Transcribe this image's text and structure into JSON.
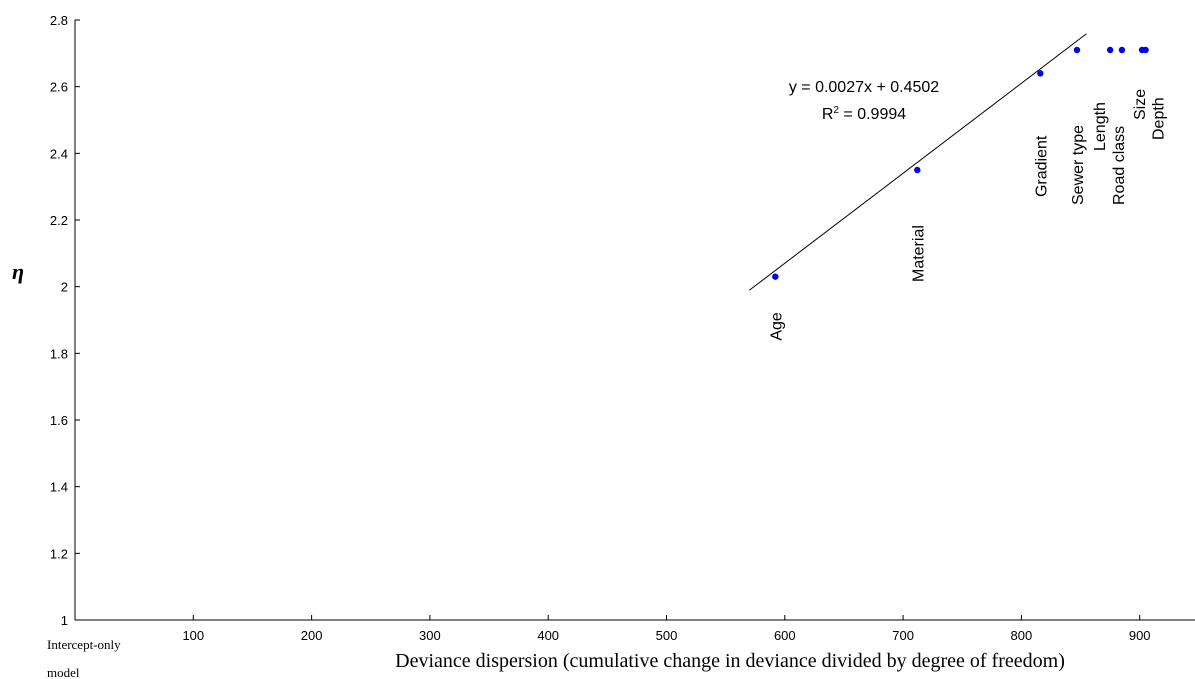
{
  "chart_data": {
    "type": "scatter",
    "xlabel": "Deviance dispersion (cumulative change in deviance divided by degree of freedom)",
    "ylabel": "η",
    "xlim": [
      0,
      900
    ],
    "ylim": [
      1,
      2.8
    ],
    "x_ticks": [
      100,
      200,
      300,
      400,
      500,
      600,
      700,
      800,
      900
    ],
    "x_tick_labels": [
      "100",
      "200",
      "300",
      "400",
      "500",
      "600",
      "700",
      "800",
      "900"
    ],
    "y_ticks": [
      1,
      1.2,
      1.4,
      1.6,
      1.8,
      2,
      2.2,
      2.4,
      2.6,
      2.8
    ],
    "y_tick_labels": [
      "1",
      "1.2",
      "1.4",
      "1.6",
      "1.8",
      "2",
      "2.2",
      "2.4",
      "2.6",
      "2.8"
    ],
    "origin_label_lines": [
      "Intercept-only",
      "model"
    ],
    "points": [
      {
        "label": "Age",
        "x": 592,
        "y": 2.03
      },
      {
        "label": "Material",
        "x": 712,
        "y": 2.35
      },
      {
        "label": "Gradient",
        "x": 816,
        "y": 2.64
      },
      {
        "label": "Sewer type",
        "x": 847,
        "y": 2.71
      },
      {
        "label": "Length",
        "x": 875,
        "y": 2.71
      },
      {
        "label": "Road class",
        "x": 885,
        "y": 2.71
      },
      {
        "label": "Size",
        "x": 902,
        "y": 2.71
      },
      {
        "label": "Depth",
        "x": 905,
        "y": 2.71
      }
    ],
    "trendline": {
      "equation": "y = 0.0027x + 0.4502",
      "r2_prefix": "R",
      "r2_sup": "2",
      "r2_value": " = 0.9994",
      "x_range": [
        570,
        855
      ],
      "slope": 0.0027,
      "intercept": 0.4502
    },
    "marker_color": "#0000ee",
    "grid": false,
    "legend": "none"
  }
}
